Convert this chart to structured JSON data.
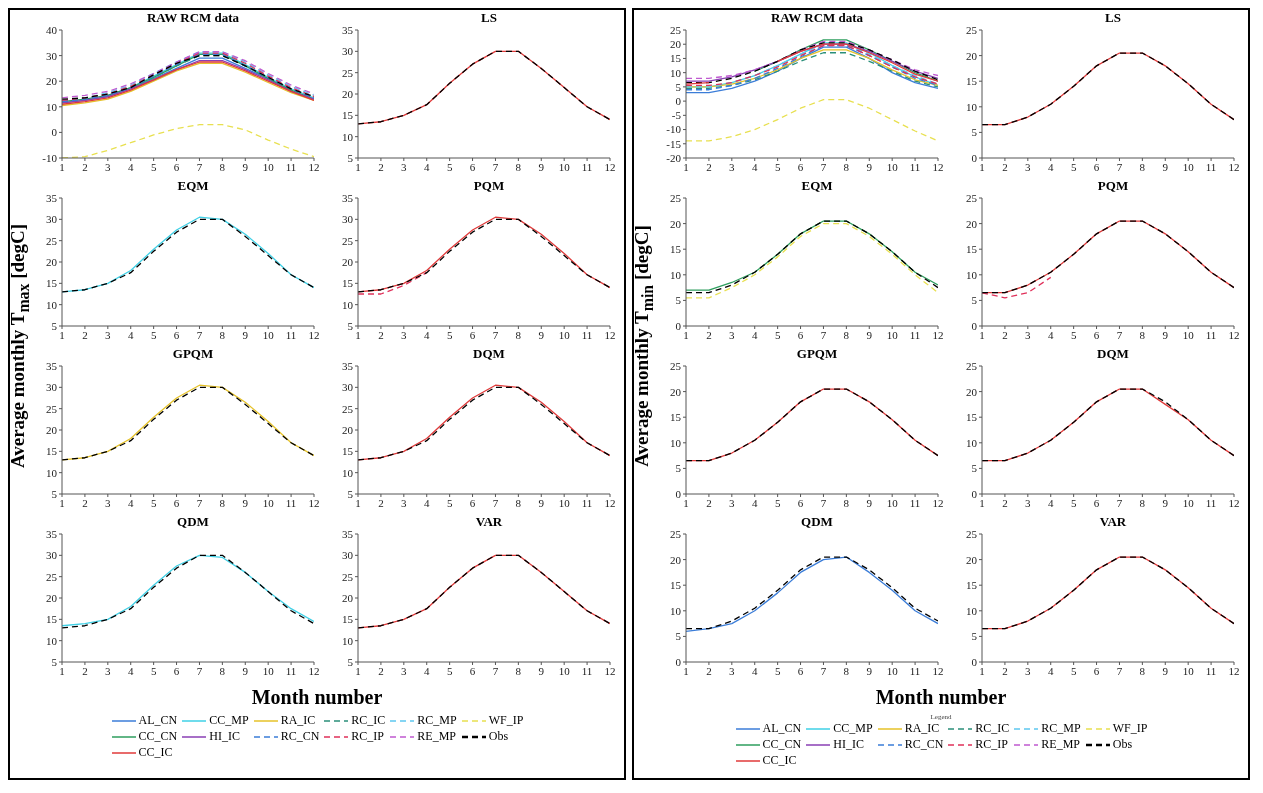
{
  "chart_data": [
    {
      "type": "line",
      "title": "RAW RCM data",
      "ylabel": "Average monthly T$_{max}$ [degC]",
      "legend": "bottom",
      "x": [
        1,
        2,
        3,
        4,
        5,
        6,
        7,
        8,
        9,
        10,
        11,
        12
      ],
      "xlim": [
        1,
        12
      ],
      "xticks": [
        1,
        2,
        3,
        4,
        5,
        6,
        7,
        8,
        9,
        10,
        11,
        12
      ],
      "ylim": [
        -10,
        40
      ],
      "yticks": [
        -10,
        0,
        10,
        20,
        30,
        40
      ],
      "series": [
        {
          "name": "AL_CN",
          "color": "#3b7dd8",
          "line_style": "solid",
          "values": [
            11.5,
            12.5,
            14,
            17,
            21,
            25,
            29,
            29,
            25,
            21,
            16,
            13
          ]
        },
        {
          "name": "CC_MP",
          "color": "#3fd0e6",
          "line_style": "solid",
          "values": [
            null,
            null,
            14.5,
            17.5,
            22,
            26.5,
            31,
            31,
            26.5,
            21.5,
            17,
            13.5
          ]
        },
        {
          "name": "RA_IC",
          "color": "#e6c229",
          "line_style": "solid",
          "values": [
            10.5,
            11.5,
            13,
            16,
            20,
            24,
            27,
            27,
            23.5,
            19.5,
            15.5,
            12.5
          ]
        },
        {
          "name": "RC_IC",
          "color": "#2a8f7a",
          "line_style": "dashed",
          "values": [
            12,
            13,
            14.5,
            17.5,
            21.5,
            26,
            30,
            30,
            26,
            21.5,
            17,
            13.5
          ]
        },
        {
          "name": "RC_MP",
          "color": "#5ec8f0",
          "line_style": "dashed",
          "values": [
            12.5,
            13.5,
            15.5,
            18.5,
            23,
            27.5,
            31.5,
            31.5,
            27.5,
            22.5,
            18,
            14.5
          ]
        },
        {
          "name": "WF_IP",
          "color": "#e8e050",
          "line_style": "dashed",
          "values": [
            -10,
            -9.5,
            -7,
            -4,
            -1,
            1.5,
            3,
            3,
            1,
            -3,
            -6.5,
            -9.5
          ]
        },
        {
          "name": "CC_CN",
          "color": "#2e9e5e",
          "line_style": "solid",
          "values": [
            12,
            13,
            14.5,
            17.5,
            21.5,
            26,
            30.5,
            30.5,
            26,
            21,
            16.5,
            13
          ]
        },
        {
          "name": "HI_IC",
          "color": "#8a3fb5",
          "line_style": "solid",
          "values": [
            11.5,
            12.5,
            14,
            17,
            20.5,
            24.5,
            28,
            28,
            24.5,
            20.5,
            16,
            13
          ]
        },
        {
          "name": "RC_CN",
          "color": "#3b7dd8",
          "line_style": "dashed",
          "values": [
            12,
            13,
            14.5,
            17.5,
            22,
            26.5,
            30.5,
            30.5,
            26,
            21.5,
            17,
            13.5
          ]
        },
        {
          "name": "RC_IP",
          "color": "#e0305a",
          "line_style": "dashed",
          "values": [
            12.5,
            13.5,
            15,
            18,
            22.5,
            27,
            31,
            31,
            27,
            22,
            17.5,
            14
          ]
        },
        {
          "name": "RE_MP",
          "color": "#c05ad0",
          "line_style": "dashed",
          "values": [
            13.5,
            14.5,
            16,
            19,
            23,
            27.5,
            31.5,
            31.5,
            28,
            23,
            18.5,
            15
          ]
        },
        {
          "name": "Obs",
          "color": "#000000",
          "line_style": "dashed",
          "values": [
            13,
            13.5,
            15,
            17.5,
            22.5,
            27,
            30,
            30,
            26,
            21.5,
            17,
            14
          ]
        },
        {
          "name": "CC_IC",
          "color": "#e03a3a",
          "line_style": "solid",
          "values": [
            11,
            12,
            13.5,
            16.5,
            20.5,
            24.5,
            27.5,
            27.5,
            24,
            20,
            16,
            12.5
          ]
        }
      ]
    },
    {
      "type": "line",
      "title": "LS",
      "x": [
        1,
        2,
        3,
        4,
        5,
        6,
        7,
        8,
        9,
        10,
        11,
        12
      ],
      "xlim": [
        1,
        12
      ],
      "xticks": [
        1,
        2,
        3,
        4,
        5,
        6,
        7,
        8,
        9,
        10,
        11,
        12
      ],
      "ylim": [
        5,
        35
      ],
      "yticks": [
        5,
        10,
        15,
        20,
        25,
        30,
        35
      ],
      "series": [
        {
          "color": "#e03a3a",
          "line_style": "solid",
          "values": [
            13,
            13.5,
            15,
            17.5,
            22.5,
            27,
            30,
            30,
            26,
            21.5,
            17,
            14
          ]
        },
        {
          "color": "#000000",
          "line_style": "dashed",
          "values": [
            13,
            13.5,
            15,
            17.5,
            22.5,
            27,
            30,
            30,
            26,
            21.5,
            17,
            14
          ]
        }
      ]
    },
    {
      "type": "line",
      "title": "EQM",
      "x": [
        1,
        2,
        3,
        4,
        5,
        6,
        7,
        8,
        9,
        10,
        11,
        12
      ],
      "xlim": [
        1,
        12
      ],
      "xticks": [
        1,
        2,
        3,
        4,
        5,
        6,
        7,
        8,
        9,
        10,
        11,
        12
      ],
      "ylim": [
        5,
        35
      ],
      "yticks": [
        5,
        10,
        15,
        20,
        25,
        30,
        35
      ],
      "series": [
        {
          "color": "#3fd0e6",
          "line_style": "solid",
          "values": [
            13,
            13.5,
            15,
            18,
            23,
            27.5,
            30.5,
            30,
            26.5,
            22,
            17,
            14
          ]
        },
        {
          "color": "#000000",
          "line_style": "dashed",
          "values": [
            13,
            13.5,
            15,
            17.5,
            22.5,
            27,
            30,
            30,
            26,
            21.5,
            17,
            14
          ]
        }
      ]
    },
    {
      "type": "line",
      "title": "PQM",
      "x": [
        1,
        2,
        3,
        4,
        5,
        6,
        7,
        8,
        9,
        10,
        11,
        12
      ],
      "xlim": [
        1,
        12
      ],
      "xticks": [
        1,
        2,
        3,
        4,
        5,
        6,
        7,
        8,
        9,
        10,
        11,
        12
      ],
      "ylim": [
        5,
        35
      ],
      "yticks": [
        5,
        10,
        15,
        20,
        25,
        30,
        35
      ],
      "series": [
        {
          "color": "#e03a3a",
          "line_style": "solid",
          "values": [
            13,
            13.5,
            15,
            18,
            23,
            27.5,
            30.5,
            30,
            26.5,
            22,
            17,
            14
          ]
        },
        {
          "color": "#e0305a",
          "line_style": "dashed",
          "values": [
            12.5,
            12.5,
            14.5,
            17.5,
            null,
            null,
            null,
            null,
            null,
            null,
            null,
            null
          ]
        },
        {
          "color": "#000000",
          "line_style": "dashed",
          "values": [
            13,
            13.5,
            15,
            17.5,
            22.5,
            27,
            30,
            30,
            26,
            21.5,
            17,
            14
          ]
        }
      ]
    },
    {
      "type": "line",
      "title": "GPQM",
      "x": [
        1,
        2,
        3,
        4,
        5,
        6,
        7,
        8,
        9,
        10,
        11,
        12
      ],
      "xlim": [
        1,
        12
      ],
      "xticks": [
        1,
        2,
        3,
        4,
        5,
        6,
        7,
        8,
        9,
        10,
        11,
        12
      ],
      "ylim": [
        5,
        35
      ],
      "yticks": [
        5,
        10,
        15,
        20,
        25,
        30,
        35
      ],
      "series": [
        {
          "color": "#e6c229",
          "line_style": "solid",
          "values": [
            13,
            13.5,
            15,
            18,
            23,
            27.5,
            30.5,
            30,
            26.5,
            22,
            17,
            14
          ]
        },
        {
          "color": "#000000",
          "line_style": "dashed",
          "values": [
            13,
            13.5,
            15,
            17.5,
            22.5,
            27,
            30,
            30,
            26,
            21.5,
            17,
            14
          ]
        }
      ]
    },
    {
      "type": "line",
      "title": "DQM",
      "x": [
        1,
        2,
        3,
        4,
        5,
        6,
        7,
        8,
        9,
        10,
        11,
        12
      ],
      "xlim": [
        1,
        12
      ],
      "xticks": [
        1,
        2,
        3,
        4,
        5,
        6,
        7,
        8,
        9,
        10,
        11,
        12
      ],
      "ylim": [
        5,
        35
      ],
      "yticks": [
        5,
        10,
        15,
        20,
        25,
        30,
        35
      ],
      "series": [
        {
          "color": "#e03a3a",
          "line_style": "solid",
          "values": [
            13,
            13.5,
            15,
            18,
            23,
            27.5,
            30.5,
            30,
            26.5,
            22,
            17,
            14
          ]
        },
        {
          "color": "#000000",
          "line_style": "dashed",
          "values": [
            13,
            13.5,
            15,
            17.5,
            22.5,
            27,
            30,
            30,
            26,
            21.5,
            17,
            14
          ]
        }
      ]
    },
    {
      "type": "line",
      "title": "QDM",
      "x": [
        1,
        2,
        3,
        4,
        5,
        6,
        7,
        8,
        9,
        10,
        11,
        12
      ],
      "xlim": [
        1,
        12
      ],
      "xticks": [
        1,
        2,
        3,
        4,
        5,
        6,
        7,
        8,
        9,
        10,
        11,
        12
      ],
      "ylim": [
        5,
        35
      ],
      "yticks": [
        5,
        10,
        15,
        20,
        25,
        30,
        35
      ],
      "series": [
        {
          "color": "#3fd0e6",
          "line_style": "solid",
          "values": [
            13.5,
            14,
            15,
            18,
            23,
            27.5,
            30,
            29.5,
            26,
            21.5,
            17.5,
            14.5
          ]
        },
        {
          "color": "#000000",
          "line_style": "dashed",
          "values": [
            13,
            13.5,
            15,
            17.5,
            22.5,
            27,
            30,
            30,
            26,
            21.5,
            17,
            14
          ]
        }
      ]
    },
    {
      "type": "line",
      "title": "VAR",
      "xlabel": "Month number",
      "x": [
        1,
        2,
        3,
        4,
        5,
        6,
        7,
        8,
        9,
        10,
        11,
        12
      ],
      "xlim": [
        1,
        12
      ],
      "xticks": [
        1,
        2,
        3,
        4,
        5,
        6,
        7,
        8,
        9,
        10,
        11,
        12
      ],
      "ylim": [
        5,
        35
      ],
      "yticks": [
        5,
        10,
        15,
        20,
        25,
        30,
        35
      ],
      "series": [
        {
          "color": "#e03a3a",
          "line_style": "solid",
          "values": [
            13,
            13.5,
            15,
            17.5,
            22.5,
            27,
            30,
            30,
            26,
            21.5,
            17,
            14
          ]
        },
        {
          "color": "#000000",
          "line_style": "dashed",
          "values": [
            13,
            13.5,
            15,
            17.5,
            22.5,
            27,
            30,
            30,
            26,
            21.5,
            17,
            14
          ]
        }
      ]
    },
    {
      "type": "line",
      "title": "RAW RCM data",
      "ylabel": "Average monthly T$_{min}$ [degC]",
      "legend": "bottom",
      "legend_title": "Legend",
      "x": [
        1,
        2,
        3,
        4,
        5,
        6,
        7,
        8,
        9,
        10,
        11,
        12
      ],
      "xlim": [
        1,
        12
      ],
      "xticks": [
        1,
        2,
        3,
        4,
        5,
        6,
        7,
        8,
        9,
        10,
        11,
        12
      ],
      "ylim": [
        -20,
        25
      ],
      "yticks": [
        -20,
        -15,
        -10,
        -5,
        0,
        5,
        10,
        15,
        20,
        25
      ],
      "series": [
        {
          "name": "AL_CN",
          "color": "#3b7dd8",
          "line_style": "solid",
          "values": [
            3,
            3,
            4.5,
            7,
            10.5,
            15,
            19,
            19,
            15,
            10,
            6.5,
            4.5
          ]
        },
        {
          "name": "CC_MP",
          "color": "#3fd0e6",
          "line_style": "solid",
          "values": [
            5,
            5,
            6.5,
            9,
            12.5,
            16.5,
            20.5,
            20.5,
            17,
            12.5,
            8.5,
            5.5
          ]
        },
        {
          "name": "RA_IC",
          "color": "#e6c229",
          "line_style": "solid",
          "values": [
            5,
            5,
            6,
            8,
            11,
            15,
            18,
            18,
            15,
            11,
            7.5,
            5.5
          ]
        },
        {
          "name": "RC_IC",
          "color": "#2a8f7a",
          "line_style": "dashed",
          "values": [
            4.5,
            4.5,
            5.5,
            7.5,
            10.5,
            14,
            17,
            17,
            14,
            10.5,
            7,
            5
          ]
        },
        {
          "name": "RC_MP",
          "color": "#5ec8f0",
          "line_style": "dashed",
          "values": [
            5,
            5,
            6.5,
            9,
            12.5,
            16.5,
            20,
            20,
            16.5,
            12.5,
            9,
            6
          ]
        },
        {
          "name": "WF_IP",
          "color": "#e8e050",
          "line_style": "dashed",
          "values": [
            -14,
            -14,
            -12.5,
            -10,
            -6.5,
            -2.5,
            0.5,
            0.5,
            -2.5,
            -6.5,
            -10.5,
            -14
          ]
        },
        {
          "name": "CC_CN",
          "color": "#2e9e5e",
          "line_style": "solid",
          "values": [
            null,
            null,
            null,
            10.5,
            14,
            18,
            21.5,
            21.5,
            18,
            14,
            10,
            7
          ]
        },
        {
          "name": "HI_IC",
          "color": "#8a3fb5",
          "line_style": "solid",
          "values": [
            7,
            7,
            8.5,
            11,
            14,
            17.5,
            20,
            20,
            17.5,
            14,
            10.5,
            8
          ]
        },
        {
          "name": "RC_CN",
          "color": "#3b7dd8",
          "line_style": "dashed",
          "values": [
            4,
            4,
            5.5,
            8,
            11.5,
            15.5,
            19.5,
            19.5,
            16,
            12,
            8,
            5.5
          ]
        },
        {
          "name": "RC_IP",
          "color": "#e0305a",
          "line_style": "dashed",
          "values": [
            5.5,
            5.5,
            6.5,
            9,
            12,
            16,
            19.5,
            19.5,
            16,
            12,
            8.5,
            6
          ]
        },
        {
          "name": "RE_MP",
          "color": "#c05ad0",
          "line_style": "dashed",
          "values": [
            8,
            8,
            9,
            11,
            14,
            18,
            21,
            21,
            18,
            14.5,
            11,
            9
          ]
        },
        {
          "name": "Obs",
          "color": "#000000",
          "line_style": "dashed",
          "values": [
            6.5,
            6.5,
            8,
            10.5,
            14,
            18,
            20.5,
            20.5,
            18,
            14.5,
            10.5,
            7.5
          ]
        },
        {
          "name": "CC_IC",
          "color": "#e03a3a",
          "line_style": "solid",
          "values": [
            6,
            6.5,
            null,
            null,
            14,
            17.5,
            20,
            20,
            17,
            13.5,
            9.5,
            7
          ]
        }
      ]
    },
    {
      "type": "line",
      "title": "LS",
      "x": [
        1,
        2,
        3,
        4,
        5,
        6,
        7,
        8,
        9,
        10,
        11,
        12
      ],
      "xlim": [
        1,
        12
      ],
      "xticks": [
        1,
        2,
        3,
        4,
        5,
        6,
        7,
        8,
        9,
        10,
        11,
        12
      ],
      "ylim": [
        0,
        25
      ],
      "yticks": [
        0,
        5,
        10,
        15,
        20,
        25
      ],
      "series": [
        {
          "color": "#e03a3a",
          "line_style": "solid",
          "values": [
            6.5,
            6.5,
            8,
            10.5,
            14,
            18,
            20.5,
            20.5,
            18,
            14.5,
            10.5,
            7.5
          ]
        },
        {
          "color": "#000000",
          "line_style": "dashed",
          "values": [
            6.5,
            6.5,
            8,
            10.5,
            14,
            18,
            20.5,
            20.5,
            18,
            14.5,
            10.5,
            7.5
          ]
        }
      ]
    },
    {
      "type": "line",
      "title": "EQM",
      "x": [
        1,
        2,
        3,
        4,
        5,
        6,
        7,
        8,
        9,
        10,
        11,
        12
      ],
      "xlim": [
        1,
        12
      ],
      "xticks": [
        1,
        2,
        3,
        4,
        5,
        6,
        7,
        8,
        9,
        10,
        11,
        12
      ],
      "ylim": [
        0,
        25
      ],
      "yticks": [
        0,
        5,
        10,
        15,
        20,
        25
      ],
      "series": [
        {
          "color": "#2e9e5e",
          "line_style": "solid",
          "values": [
            7,
            7,
            8.5,
            10.5,
            14,
            18,
            20.5,
            20.5,
            18,
            14.5,
            10.5,
            8
          ]
        },
        {
          "color": "#e8e050",
          "line_style": "dashed",
          "values": [
            5.5,
            5.5,
            7.5,
            10,
            13.5,
            17.5,
            20,
            20,
            17.5,
            14,
            10,
            6.5
          ]
        },
        {
          "color": "#000000",
          "line_style": "dashed",
          "values": [
            6.5,
            6.5,
            8,
            10.5,
            14,
            18,
            20.5,
            20.5,
            18,
            14.5,
            10.5,
            7.5
          ]
        }
      ]
    },
    {
      "type": "line",
      "title": "PQM",
      "x": [
        1,
        2,
        3,
        4,
        5,
        6,
        7,
        8,
        9,
        10,
        11,
        12
      ],
      "xlim": [
        1,
        12
      ],
      "xticks": [
        1,
        2,
        3,
        4,
        5,
        6,
        7,
        8,
        9,
        10,
        11,
        12
      ],
      "ylim": [
        0,
        25
      ],
      "yticks": [
        0,
        5,
        10,
        15,
        20,
        25
      ],
      "series": [
        {
          "color": "#e03a3a",
          "line_style": "solid",
          "values": [
            6.5,
            6.5,
            8,
            10.5,
            14,
            18,
            20.5,
            20.5,
            18,
            14.5,
            10.5,
            7.5
          ]
        },
        {
          "color": "#e0305a",
          "line_style": "dashed",
          "values": [
            6.5,
            5.5,
            6.5,
            9.5,
            null,
            null,
            null,
            null,
            null,
            null,
            null,
            null
          ]
        },
        {
          "color": "#000000",
          "line_style": "dashed",
          "values": [
            6.5,
            6.5,
            8,
            10.5,
            14,
            18,
            20.5,
            20.5,
            18,
            14.5,
            10.5,
            7.5
          ]
        }
      ]
    },
    {
      "type": "line",
      "title": "GPQM",
      "x": [
        1,
        2,
        3,
        4,
        5,
        6,
        7,
        8,
        9,
        10,
        11,
        12
      ],
      "xlim": [
        1,
        12
      ],
      "xticks": [
        1,
        2,
        3,
        4,
        5,
        6,
        7,
        8,
        9,
        10,
        11,
        12
      ],
      "ylim": [
        0,
        25
      ],
      "yticks": [
        0,
        5,
        10,
        15,
        20,
        25
      ],
      "series": [
        {
          "color": "#e03a3a",
          "line_style": "solid",
          "values": [
            6.5,
            6.5,
            8,
            10.5,
            14,
            18,
            20.5,
            20.5,
            18,
            14.5,
            10.5,
            7.5
          ]
        },
        {
          "color": "#000000",
          "line_style": "dashed",
          "values": [
            6.5,
            6.5,
            8,
            10.5,
            14,
            18,
            20.5,
            20.5,
            18,
            14.5,
            10.5,
            7.5
          ]
        }
      ]
    },
    {
      "type": "line",
      "title": "DQM",
      "x": [
        1,
        2,
        3,
        4,
        5,
        6,
        7,
        8,
        9,
        10,
        11,
        12
      ],
      "xlim": [
        1,
        12
      ],
      "xticks": [
        1,
        2,
        3,
        4,
        5,
        6,
        7,
        8,
        9,
        10,
        11,
        12
      ],
      "ylim": [
        0,
        25
      ],
      "yticks": [
        0,
        5,
        10,
        15,
        20,
        25
      ],
      "series": [
        {
          "color": "#e03a3a",
          "line_style": "solid",
          "values": [
            6.5,
            6.5,
            8,
            10.5,
            14,
            18,
            20.5,
            20.5,
            17.5,
            14.5,
            10.5,
            7.5
          ]
        },
        {
          "color": "#000000",
          "line_style": "dashed",
          "values": [
            6.5,
            6.5,
            8,
            10.5,
            14,
            18,
            20.5,
            20.5,
            18,
            14.5,
            10.5,
            7.5
          ]
        }
      ]
    },
    {
      "type": "line",
      "title": "QDM",
      "x": [
        1,
        2,
        3,
        4,
        5,
        6,
        7,
        8,
        9,
        10,
        11,
        12
      ],
      "xlim": [
        1,
        12
      ],
      "xticks": [
        1,
        2,
        3,
        4,
        5,
        6,
        7,
        8,
        9,
        10,
        11,
        12
      ],
      "ylim": [
        0,
        25
      ],
      "yticks": [
        0,
        5,
        10,
        15,
        20,
        25
      ],
      "series": [
        {
          "color": "#3b7dd8",
          "line_style": "solid",
          "values": [
            6,
            6.5,
            7.5,
            10,
            13.5,
            17.5,
            20,
            20.5,
            17.5,
            14,
            10,
            7.5
          ]
        },
        {
          "color": "#000000",
          "line_style": "dashed",
          "values": [
            6.5,
            6.5,
            8,
            10.5,
            14,
            18,
            20.5,
            20.5,
            18,
            14.5,
            10.5,
            8
          ]
        }
      ]
    },
    {
      "type": "line",
      "title": "VAR",
      "xlabel": "Month number",
      "x": [
        1,
        2,
        3,
        4,
        5,
        6,
        7,
        8,
        9,
        10,
        11,
        12
      ],
      "xlim": [
        1,
        12
      ],
      "xticks": [
        1,
        2,
        3,
        4,
        5,
        6,
        7,
        8,
        9,
        10,
        11,
        12
      ],
      "ylim": [
        0,
        25
      ],
      "yticks": [
        0,
        5,
        10,
        15,
        20,
        25
      ],
      "series": [
        {
          "color": "#e03a3a",
          "line_style": "solid",
          "values": [
            6.5,
            6.5,
            8,
            10.5,
            14,
            18,
            20.5,
            20.5,
            18,
            14.5,
            10.5,
            7.5
          ]
        },
        {
          "color": "#000000",
          "line_style": "dashed",
          "values": [
            6.5,
            6.5,
            8,
            10.5,
            14,
            18,
            20.5,
            20.5,
            18,
            14.5,
            10.5,
            7.5
          ]
        }
      ]
    }
  ]
}
